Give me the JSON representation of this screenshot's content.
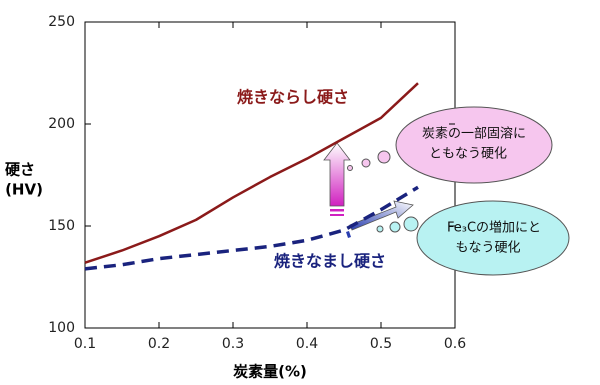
{
  "chart_data": {
    "type": "line",
    "x_label": "炭素量(%)",
    "y_label": [
      "硬さ",
      "(HV)"
    ],
    "x": [
      0.1,
      0.15,
      0.2,
      0.25,
      0.3,
      0.35,
      0.4,
      0.45,
      0.5,
      0.55
    ],
    "series": [
      {
        "name": "焼きならし硬さ",
        "color": "#8b1a1a",
        "style": "solid",
        "values": [
          132,
          138,
          145,
          153,
          164,
          174,
          183,
          193,
          203,
          220
        ]
      },
      {
        "name": "焼きなまし硬さ",
        "color": "#1a237e",
        "style": "dashed",
        "values": [
          129,
          131,
          134,
          136,
          138,
          140,
          143,
          148,
          158,
          169
        ]
      }
    ],
    "xlim": [
      0.1,
      0.6
    ],
    "xticks": [
      0.1,
      0.2,
      0.3,
      0.4,
      0.5,
      0.6
    ],
    "ylim": [
      100,
      250
    ],
    "yticks": [
      100,
      150,
      200,
      250
    ],
    "annotations": [
      {
        "lines": [
          "炭素の一部固溶に",
          "ともなう硬化"
        ]
      },
      {
        "lines": [
          "Fe₃Cの増加にと",
          "もなう硬化"
        ]
      }
    ]
  }
}
